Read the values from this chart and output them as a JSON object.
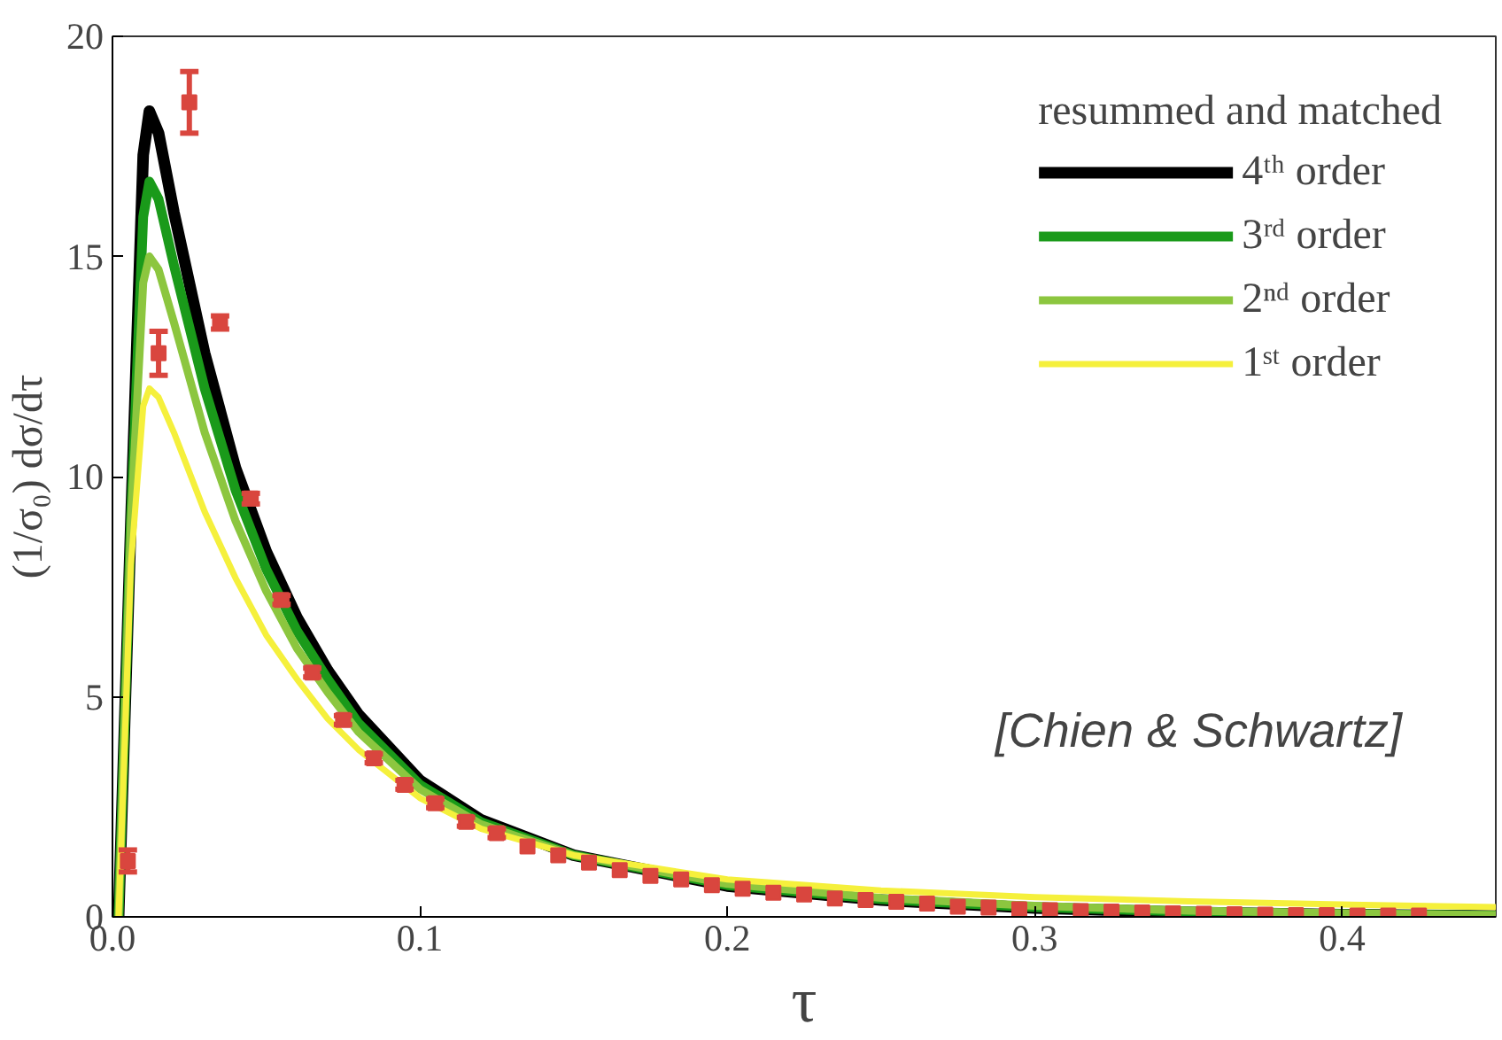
{
  "chart_data": {
    "type": "line",
    "xlabel": "τ",
    "ylabel": "(1/σ₀) dσ/dτ",
    "legend_title": "resummed and matched",
    "xlim": [
      0,
      0.45
    ],
    "ylim": [
      0,
      20
    ],
    "xticks": [
      {
        "value": 0,
        "label": "0.0"
      },
      0.1,
      0.2,
      0.3,
      0.4
    ],
    "yticks": [
      0,
      5,
      10,
      15,
      20
    ],
    "grid": false,
    "legend": "top right",
    "line_style": "solid",
    "annotations": [
      "[Chien & Schwartz]"
    ],
    "series": [
      {
        "name": "4ᵗʰ order",
        "color": "#000000",
        "x": [
          0.002,
          0.006,
          0.01,
          0.012,
          0.015,
          0.02,
          0.03,
          0.04,
          0.05,
          0.06,
          0.07,
          0.08,
          0.1,
          0.12,
          0.15,
          0.2,
          0.25,
          0.3,
          0.35,
          0.4,
          0.45
        ],
        "values": [
          0,
          9,
          17.3,
          18.3,
          17.8,
          16.0,
          12.8,
          10.2,
          8.3,
          6.8,
          5.6,
          4.6,
          3.1,
          2.2,
          1.4,
          0.7,
          0.38,
          0.2,
          0.1,
          0.05,
          0.02
        ]
      },
      {
        "name": "3ʳᵈ order",
        "color": "#1a9a1a",
        "x": [
          0.002,
          0.006,
          0.01,
          0.012,
          0.015,
          0.02,
          0.03,
          0.04,
          0.05,
          0.06,
          0.07,
          0.08,
          0.1,
          0.12,
          0.15,
          0.2,
          0.25,
          0.3,
          0.35,
          0.4,
          0.45
        ],
        "values": [
          0,
          9,
          15.9,
          16.7,
          16.3,
          14.8,
          12.0,
          9.7,
          7.9,
          6.5,
          5.4,
          4.4,
          3.0,
          2.15,
          1.4,
          0.72,
          0.4,
          0.22,
          0.12,
          0.06,
          0.03
        ]
      },
      {
        "name": "2ⁿᵈ order",
        "color": "#8cc63f",
        "x": [
          0.002,
          0.006,
          0.01,
          0.012,
          0.015,
          0.02,
          0.03,
          0.04,
          0.05,
          0.06,
          0.07,
          0.08,
          0.1,
          0.12,
          0.15,
          0.2,
          0.25,
          0.3,
          0.35,
          0.4,
          0.45
        ],
        "values": [
          0,
          9,
          14.4,
          15.0,
          14.7,
          13.5,
          11.0,
          9.0,
          7.4,
          6.1,
          5.1,
          4.2,
          2.9,
          2.1,
          1.4,
          0.75,
          0.43,
          0.25,
          0.14,
          0.08,
          0.04
        ]
      },
      {
        "name": "1ˢᵗ order",
        "color": "#f5f03c",
        "x": [
          0.002,
          0.006,
          0.01,
          0.012,
          0.015,
          0.02,
          0.03,
          0.04,
          0.05,
          0.06,
          0.07,
          0.08,
          0.1,
          0.12,
          0.15,
          0.2,
          0.25,
          0.3,
          0.35,
          0.4,
          0.45
        ],
        "values": [
          0,
          8,
          11.6,
          12.0,
          11.8,
          11.0,
          9.2,
          7.7,
          6.4,
          5.4,
          4.5,
          3.8,
          2.7,
          2.0,
          1.4,
          0.85,
          0.6,
          0.45,
          0.35,
          0.28,
          0.22
        ]
      },
      {
        "type": "scatter",
        "marker": "square",
        "color": "#d9463e",
        "x": [
          0.005,
          0.015,
          0.025,
          0.035,
          0.045,
          0.055,
          0.065,
          0.075,
          0.085,
          0.095,
          0.105,
          0.115,
          0.125,
          0.135,
          0.145,
          0.155,
          0.165,
          0.175,
          0.185,
          0.195,
          0.205,
          0.215,
          0.225,
          0.235,
          0.245,
          0.255,
          0.265,
          0.275,
          0.285,
          0.295,
          0.305,
          0.315,
          0.325,
          0.335,
          0.345,
          0.355,
          0.365,
          0.375,
          0.385,
          0.395,
          0.405,
          0.415,
          0.425
        ],
        "values": [
          1.27,
          12.8,
          18.5,
          13.5,
          9.5,
          7.2,
          5.55,
          4.47,
          3.6,
          3.0,
          2.58,
          2.16,
          1.9,
          1.6,
          1.4,
          1.23,
          1.06,
          0.93,
          0.85,
          0.72,
          0.64,
          0.55,
          0.51,
          0.42,
          0.38,
          0.34,
          0.3,
          0.23,
          0.21,
          0.17,
          0.15,
          0.13,
          0.12,
          0.1,
          0.08,
          0.07,
          0.06,
          0.05,
          0.04,
          0.04,
          0.03,
          0.03,
          0.03
        ],
        "errors": [
          0.25,
          0.5,
          0.7,
          0.15,
          0.12,
          0.1,
          0.1,
          0.1,
          0.1,
          0.1,
          0.1,
          0.1,
          0.1,
          null,
          null,
          null,
          null,
          null,
          null,
          null,
          null,
          null,
          null,
          null,
          null,
          null,
          null,
          null,
          null,
          null,
          null,
          null,
          null,
          null,
          null,
          null,
          null,
          null,
          null,
          null,
          null,
          null,
          null
        ]
      }
    ]
  }
}
